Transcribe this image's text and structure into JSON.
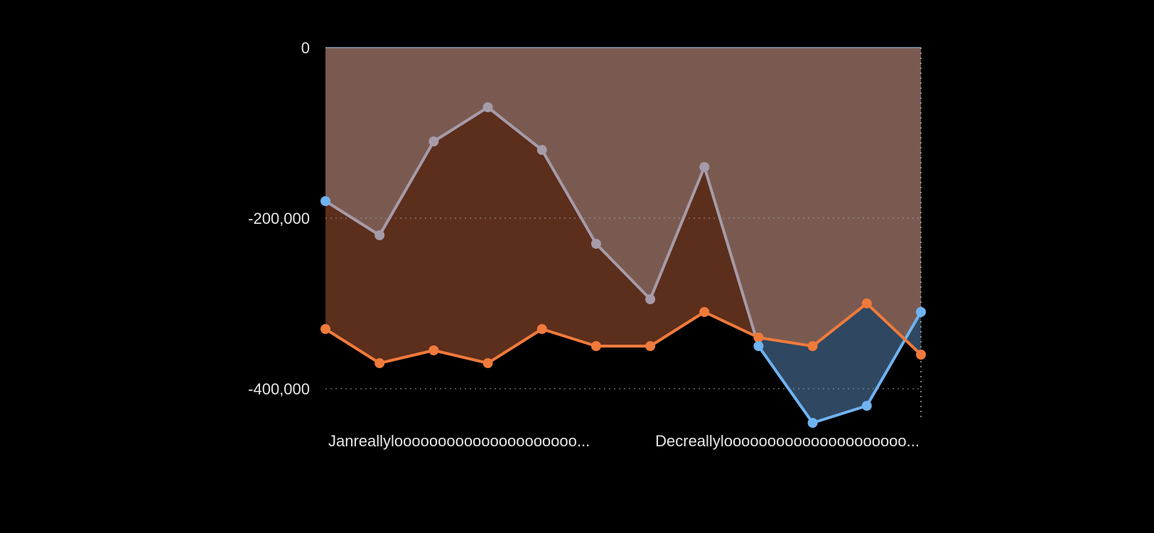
{
  "chart_data": {
    "type": "area",
    "categories": [
      "Janreallylooooooooooooooooooooo...",
      "",
      "",
      "",
      "",
      "",
      "Decreallylooooooooooooooooooooo...",
      "",
      "",
      "",
      "",
      ""
    ],
    "x_tick_labels": [
      "Janreallylooooooooooooooooooooo...",
      "Decreallylooooooooooooooooooooo..."
    ],
    "ylim": [
      -440000,
      0
    ],
    "yticks": [
      0,
      -200000,
      -400000
    ],
    "ytick_labels": [
      "0",
      "-200,000",
      "-400,000"
    ],
    "grid": true,
    "xlabel": "",
    "ylabel": "",
    "title": "",
    "series": [
      {
        "color": "#a69ba8",
        "fill": "#7a5a50",
        "values": [
          -180000,
          -220000,
          -110000,
          -70000,
          -120000,
          -230000,
          -295000,
          -140000,
          -350000,
          -440000,
          -420000,
          -310000
        ]
      },
      {
        "color": "#ef7a3c",
        "fill": "#5c2e1c",
        "values": [
          -330000,
          -370000,
          -355000,
          -370000,
          -330000,
          -350000,
          -350000,
          -310000,
          -340000,
          -350000,
          -300000,
          -360000
        ]
      },
      {
        "color": "#6fb3f0",
        "fill": "#2f4760",
        "values": [
          -180000,
          null,
          null,
          null,
          null,
          null,
          null,
          null,
          -350000,
          -440000,
          -420000,
          -310000
        ]
      }
    ]
  }
}
